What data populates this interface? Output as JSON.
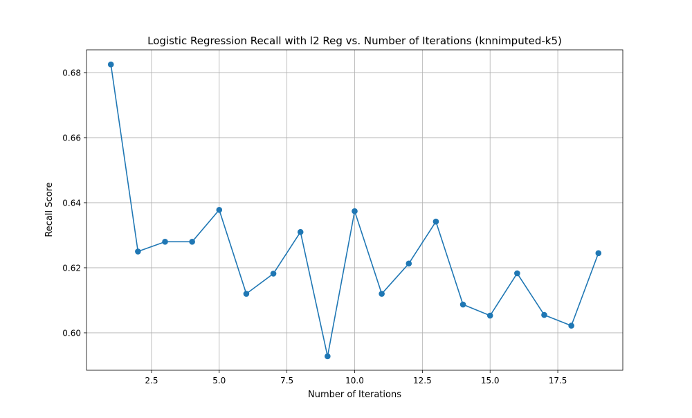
{
  "chart_data": {
    "type": "line",
    "title": "Logistic Regression Recall with l2 Reg vs. Number of Iterations (knnimputed-k5)",
    "xlabel": "Number of Iterations",
    "ylabel": "Recall Score",
    "xlim": [
      0.1,
      19.9
    ],
    "ylim": [
      0.5885,
      0.687
    ],
    "grid": true,
    "line_color": "#1f77b4",
    "x_ticks": [
      2.5,
      5.0,
      7.5,
      10.0,
      12.5,
      15.0,
      17.5
    ],
    "x_tick_labels": [
      "2.5",
      "5.0",
      "7.5",
      "10.0",
      "12.5",
      "15.0",
      "17.5"
    ],
    "y_ticks": [
      0.6,
      0.62,
      0.64,
      0.66,
      0.68
    ],
    "y_tick_labels": [
      "0.60",
      "0.62",
      "0.64",
      "0.66",
      "0.68"
    ],
    "x": [
      1,
      2,
      3,
      4,
      5,
      6,
      7,
      8,
      9,
      10,
      11,
      12,
      13,
      14,
      15,
      16,
      17,
      18,
      19
    ],
    "y": [
      0.6825,
      0.625,
      0.628,
      0.628,
      0.6378,
      0.612,
      0.6182,
      0.631,
      0.5928,
      0.6374,
      0.612,
      0.6213,
      0.6342,
      0.6087,
      0.6053,
      0.6183,
      0.6055,
      0.6022,
      0.6245
    ]
  }
}
